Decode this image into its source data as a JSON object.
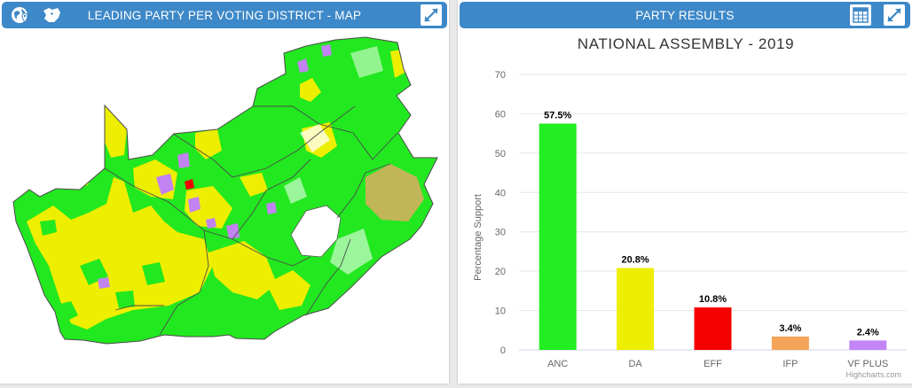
{
  "theme": {
    "header_color": "#3d88c8",
    "map_green": "#22e81f",
    "map_yellow": "#eeee00",
    "map_purple": "#c183f2",
    "map_red": "#f00000",
    "map_orange": "#f5a46a",
    "map_white": "#ffffff"
  },
  "map_panel": {
    "title": "LEADING PARTY PER VOTING DISTRICT - MAP",
    "icons": [
      "globe-pin-icon",
      "map-africa-icon",
      "expand-icon"
    ]
  },
  "chart_panel": {
    "title": "PARTY RESULTS",
    "icons": [
      "table-icon",
      "expand-icon"
    ],
    "credit": "Highcharts.com"
  },
  "chart_data": {
    "type": "bar",
    "title": "NATIONAL ASSEMBLY - 2019",
    "xlabel": "",
    "ylabel": "Percentage Support",
    "ylim": [
      0,
      70
    ],
    "yticks": [
      0,
      10,
      20,
      30,
      40,
      50,
      60,
      70
    ],
    "grid": true,
    "categories": [
      "ANC",
      "DA",
      "EFF",
      "IFP",
      "VF PLUS"
    ],
    "values": [
      57.5,
      20.8,
      10.8,
      3.4,
      2.4
    ],
    "data_labels": [
      "57.5%",
      "20.8%",
      "10.8%",
      "3.4%",
      "2.4%"
    ],
    "colors": [
      "#22ee22",
      "#eeee00",
      "#f50000",
      "#f5a45a",
      "#c285f5"
    ]
  }
}
